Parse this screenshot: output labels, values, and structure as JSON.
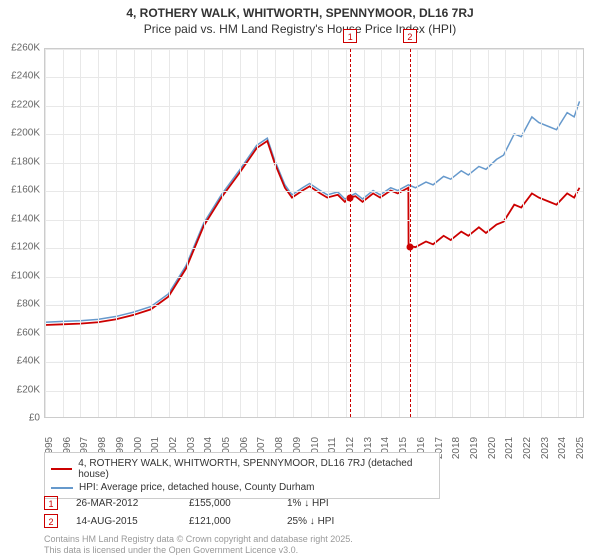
{
  "title_line1": "4, ROTHERY WALK, WHITWORTH, SPENNYMOOR, DL16 7RJ",
  "title_line2": "Price paid vs. HM Land Registry's House Price Index (HPI)",
  "chart": {
    "type": "line",
    "ylim": [
      0,
      260000
    ],
    "ytick_step": 20000,
    "yticks": [
      "£0",
      "£20K",
      "£40K",
      "£60K",
      "£80K",
      "£100K",
      "£120K",
      "£140K",
      "£160K",
      "£180K",
      "£200K",
      "£220K",
      "£240K",
      "£260K"
    ],
    "xlim": [
      1995,
      2025.5
    ],
    "xticks": [
      "1995",
      "1996",
      "1997",
      "1998",
      "1999",
      "2000",
      "2001",
      "2002",
      "2003",
      "2004",
      "2005",
      "2006",
      "2007",
      "2008",
      "2009",
      "2010",
      "2011",
      "2012",
      "2013",
      "2014",
      "2015",
      "2016",
      "2017",
      "2018",
      "2019",
      "2020",
      "2021",
      "2022",
      "2023",
      "2024",
      "2025"
    ],
    "background_color": "#ffffff",
    "grid_color": "#e8e8e8",
    "series": [
      {
        "name": "property",
        "color": "#cc0000",
        "width": 1.8,
        "points": [
          [
            1995,
            65000
          ],
          [
            1996,
            65500
          ],
          [
            1997,
            66000
          ],
          [
            1998,
            67000
          ],
          [
            1999,
            69000
          ],
          [
            2000,
            72000
          ],
          [
            2001,
            76000
          ],
          [
            2002,
            85000
          ],
          [
            2003,
            105000
          ],
          [
            2004,
            135000
          ],
          [
            2005,
            155000
          ],
          [
            2006,
            172000
          ],
          [
            2007,
            190000
          ],
          [
            2007.6,
            195000
          ],
          [
            2008,
            180000
          ],
          [
            2008.6,
            162000
          ],
          [
            2009,
            155000
          ],
          [
            2009.6,
            160000
          ],
          [
            2010,
            163000
          ],
          [
            2010.6,
            158000
          ],
          [
            2011,
            155000
          ],
          [
            2011.6,
            157000
          ],
          [
            2012,
            152000
          ],
          [
            2012.24,
            155000
          ],
          [
            2012.6,
            156000
          ],
          [
            2013,
            152000
          ],
          [
            2013.6,
            158000
          ],
          [
            2014,
            155000
          ],
          [
            2014.6,
            160000
          ],
          [
            2015,
            158000
          ],
          [
            2015.6,
            162000
          ],
          [
            2015.61,
            121000
          ],
          [
            2016,
            120000
          ],
          [
            2016.6,
            124000
          ],
          [
            2017,
            122000
          ],
          [
            2017.6,
            128000
          ],
          [
            2018,
            125000
          ],
          [
            2018.6,
            131000
          ],
          [
            2019,
            128000
          ],
          [
            2019.6,
            134000
          ],
          [
            2020,
            130000
          ],
          [
            2020.6,
            136000
          ],
          [
            2021,
            138000
          ],
          [
            2021.6,
            150000
          ],
          [
            2022,
            148000
          ],
          [
            2022.6,
            158000
          ],
          [
            2023,
            155000
          ],
          [
            2023.6,
            152000
          ],
          [
            2024,
            150000
          ],
          [
            2024.6,
            158000
          ],
          [
            2025,
            155000
          ],
          [
            2025.3,
            162000
          ]
        ]
      },
      {
        "name": "hpi",
        "color": "#6699cc",
        "width": 1.5,
        "points": [
          [
            1995,
            67000
          ],
          [
            1996,
            67500
          ],
          [
            1997,
            68000
          ],
          [
            1998,
            69000
          ],
          [
            1999,
            71000
          ],
          [
            2000,
            74000
          ],
          [
            2001,
            78000
          ],
          [
            2002,
            87000
          ],
          [
            2003,
            107000
          ],
          [
            2004,
            137000
          ],
          [
            2005,
            157000
          ],
          [
            2006,
            174000
          ],
          [
            2007,
            192000
          ],
          [
            2007.6,
            197000
          ],
          [
            2008,
            182000
          ],
          [
            2008.6,
            164000
          ],
          [
            2009,
            157000
          ],
          [
            2009.6,
            162000
          ],
          [
            2010,
            165000
          ],
          [
            2010.6,
            160000
          ],
          [
            2011,
            157000
          ],
          [
            2011.6,
            159000
          ],
          [
            2012,
            154000
          ],
          [
            2012.6,
            158000
          ],
          [
            2013,
            154000
          ],
          [
            2013.6,
            160000
          ],
          [
            2014,
            157000
          ],
          [
            2014.6,
            162000
          ],
          [
            2015,
            160000
          ],
          [
            2015.6,
            164000
          ],
          [
            2016,
            162000
          ],
          [
            2016.6,
            166000
          ],
          [
            2017,
            164000
          ],
          [
            2017.6,
            170000
          ],
          [
            2018,
            168000
          ],
          [
            2018.6,
            174000
          ],
          [
            2019,
            171000
          ],
          [
            2019.6,
            177000
          ],
          [
            2020,
            175000
          ],
          [
            2020.6,
            182000
          ],
          [
            2021,
            185000
          ],
          [
            2021.6,
            200000
          ],
          [
            2022,
            198000
          ],
          [
            2022.6,
            212000
          ],
          [
            2023,
            208000
          ],
          [
            2023.6,
            205000
          ],
          [
            2024,
            203000
          ],
          [
            2024.6,
            215000
          ],
          [
            2025,
            212000
          ],
          [
            2025.3,
            223000
          ]
        ]
      }
    ],
    "sale_markers": [
      {
        "label": "1",
        "x": 2012.24,
        "y": 155000
      },
      {
        "label": "2",
        "x": 2015.61,
        "y": 121000
      }
    ]
  },
  "legend": {
    "items": [
      {
        "color": "#cc0000",
        "label": "4, ROTHERY WALK, WHITWORTH, SPENNYMOOR, DL16 7RJ (detached house)"
      },
      {
        "color": "#6699cc",
        "label": "HPI: Average price, detached house, County Durham"
      }
    ]
  },
  "sales": [
    {
      "marker": "1",
      "date": "26-MAR-2012",
      "price": "£155,000",
      "pct": "1% ↓ HPI"
    },
    {
      "marker": "2",
      "date": "14-AUG-2015",
      "price": "£121,000",
      "pct": "25% ↓ HPI"
    }
  ],
  "credit_line1": "Contains HM Land Registry data © Crown copyright and database right 2025.",
  "credit_line2": "This data is licensed under the Open Government Licence v3.0."
}
